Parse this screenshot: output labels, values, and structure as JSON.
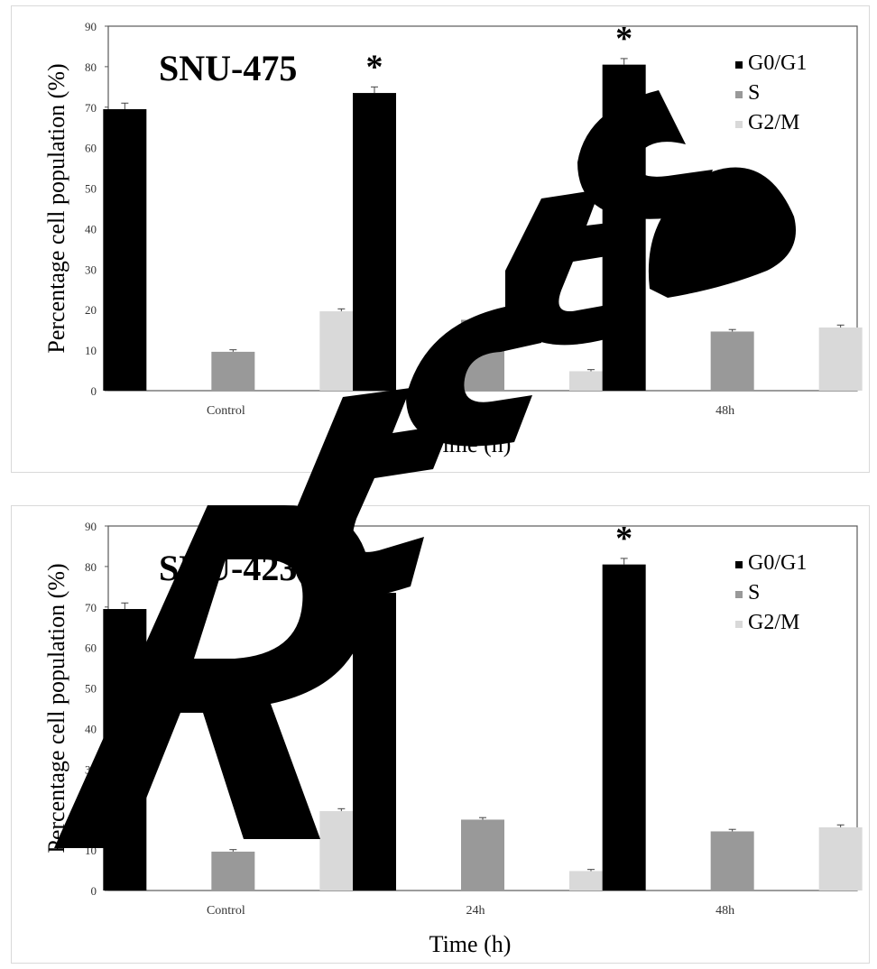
{
  "chart_data": [
    {
      "type": "bar",
      "title": "SNU-475",
      "xlabel": "Time (h)",
      "ylabel": "Percentage cell population (%)",
      "ylim": [
        0,
        90
      ],
      "yticks": [
        "0",
        "10",
        "20",
        "30",
        "40",
        "50",
        "60",
        "70",
        "80",
        "90"
      ],
      "categories": [
        "Control",
        "24h",
        "48h"
      ],
      "series": [
        {
          "name": "G0/G1",
          "values": [
            69.5,
            73.5,
            80.5
          ],
          "errors": [
            1.5,
            1.5,
            1.5
          ],
          "color": "#000000"
        },
        {
          "name": "S",
          "values": [
            9.6,
            17.5,
            14.6
          ],
          "errors": [
            0.5,
            0.5,
            0.5
          ],
          "color": "#999999"
        },
        {
          "name": "G2/M",
          "values": [
            19.6,
            4.8,
            15.6
          ],
          "errors": [
            0.6,
            0.4,
            0.6
          ],
          "color": "#d9d9d9"
        }
      ],
      "significance": [
        "",
        "*",
        "*"
      ],
      "legend_position": "top-right",
      "grid": false
    },
    {
      "type": "bar",
      "title": "SNU-423",
      "xlabel": "Time (h)",
      "ylabel": "Percentage cell population (%)",
      "ylim": [
        0,
        90
      ],
      "yticks": [
        "0",
        "10",
        "20",
        "30",
        "40",
        "50",
        "60",
        "70",
        "80",
        "90"
      ],
      "categories": [
        "Control",
        "24h",
        "48h"
      ],
      "series": [
        {
          "name": "G0/G1",
          "values": [
            69.5,
            73.5,
            80.5
          ],
          "errors": [
            1.5,
            1.5,
            1.5
          ],
          "color": "#000000"
        },
        {
          "name": "S",
          "values": [
            9.6,
            17.5,
            14.6
          ],
          "errors": [
            0.5,
            0.5,
            0.5
          ],
          "color": "#999999"
        },
        {
          "name": "G2/M",
          "values": [
            19.6,
            4.8,
            15.6
          ],
          "errors": [
            0.6,
            0.4,
            0.6
          ],
          "color": "#d9d9d9"
        }
      ],
      "significance": [
        "",
        "*",
        "*"
      ],
      "legend_position": "top-right",
      "grid": false
    }
  ],
  "watermark": {
    "text": "Retracted",
    "color": "#000000"
  }
}
